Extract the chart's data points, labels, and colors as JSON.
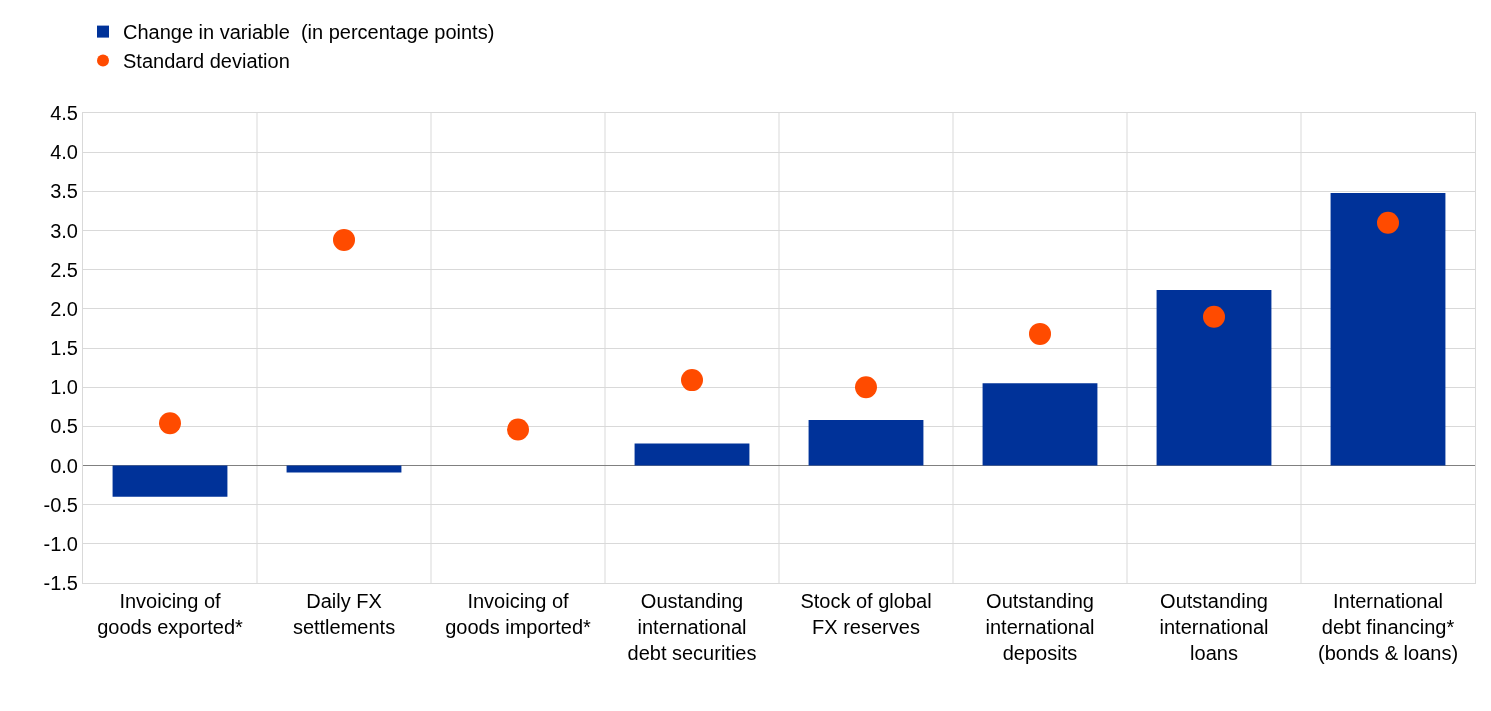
{
  "chart_data": {
    "type": "bar",
    "categories": [
      "Invoicing of goods exported*",
      "Daily FX settlements",
      "Invoicing of goods imported*",
      "Oustanding international debt securities",
      "Stock of global FX reserves",
      "Outstanding international deposits",
      "Outstanding international loans",
      "International debt financing* (bonds & loans)"
    ],
    "series": [
      {
        "name": "Change in variable  (in percentage points)",
        "color": "#003299",
        "values": [
          -0.4,
          -0.09,
          0,
          0.28,
          0.58,
          1.05,
          2.24,
          3.48
        ]
      },
      {
        "name": "Standard deviation",
        "type": "scatter",
        "marker": "circle",
        "color": "#ff4b00",
        "x": [
          "Invoicing of goods exported*",
          "Daily FX settlements",
          "Invoicing of goods imported*",
          "Oustanding international debt securities",
          "Stock of global FX reserves",
          "Outstanding international deposits",
          "Outstanding international loans",
          "International debt financing* (bonds & loans)"
        ],
        "values": [
          0.54,
          2.88,
          0.46,
          1.09,
          1.0,
          1.68,
          1.9,
          3.1
        ]
      }
    ],
    "ylim": [
      -1.5,
      4.5
    ],
    "yticks": [
      -1.5,
      {
        "value": -1,
        "label": "-1.0"
      },
      -0.5,
      {
        "value": 0,
        "label": "0.0"
      },
      0.5,
      {
        "value": 1,
        "label": "1.0"
      },
      1.5,
      {
        "value": 2,
        "label": "2.0"
      },
      2.5,
      {
        "value": 3,
        "label": "3.0"
      },
      3.5,
      {
        "value": 4,
        "label": "4.0"
      },
      4.5
    ],
    "grid": true,
    "legend": "top left"
  }
}
